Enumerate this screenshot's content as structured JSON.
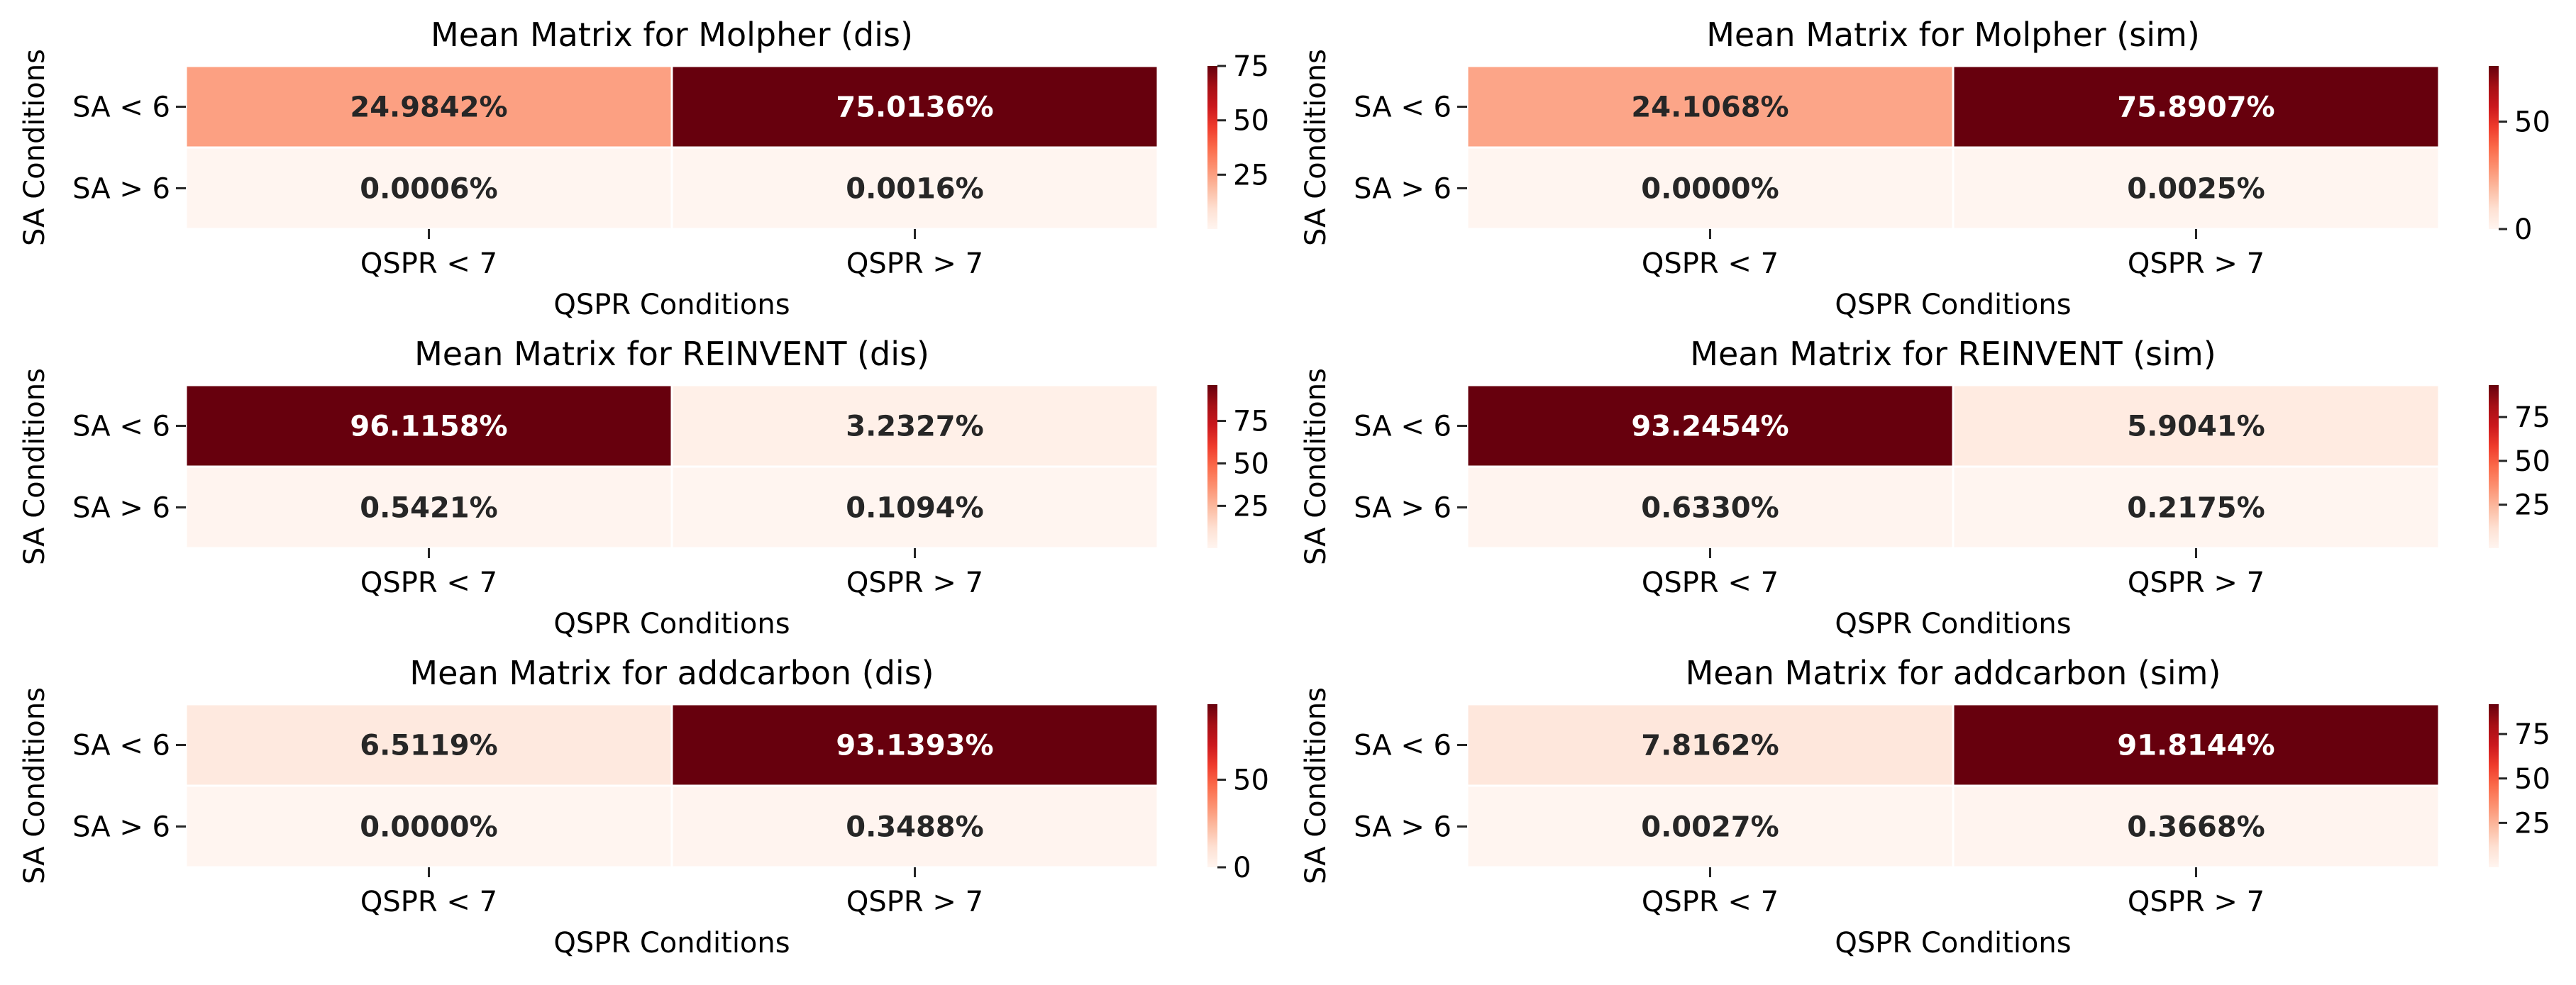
{
  "figure": {
    "xlabel": "QSPR Conditions",
    "ylabel": "SA Conditions",
    "value_suffix": "%",
    "colormap": "Reds",
    "colors": {
      "light": "#fff5f0",
      "dark": "#67000d",
      "text_dark": "#262626",
      "text_light": "#ffffff",
      "tick": "#262626"
    }
  },
  "chart_data": [
    {
      "type": "heatmap",
      "title": "Mean Matrix for Molpher (dis)",
      "xlabel": "QSPR Conditions",
      "ylabel": "SA Conditions",
      "x_categories": [
        "QSPR < 7",
        "QSPR > 7"
      ],
      "y_categories": [
        "SA < 6",
        "SA > 6"
      ],
      "values": [
        [
          24.9842,
          75.0136
        ],
        [
          0.0006,
          0.0016
        ]
      ],
      "value_labels": [
        [
          "24.9842%",
          "75.0136%"
        ],
        [
          "0.0006%",
          "0.0016%"
        ]
      ],
      "colorbar_ticks": [
        25,
        50,
        75
      ]
    },
    {
      "type": "heatmap",
      "title": "Mean Matrix for Molpher (sim)",
      "xlabel": "QSPR Conditions",
      "ylabel": "SA Conditions",
      "x_categories": [
        "QSPR < 7",
        "QSPR > 7"
      ],
      "y_categories": [
        "SA < 6",
        "SA > 6"
      ],
      "values": [
        [
          24.1068,
          75.8907
        ],
        [
          0.0,
          0.0025
        ]
      ],
      "value_labels": [
        [
          "24.1068%",
          "75.8907%"
        ],
        [
          "0.0000%",
          "0.0025%"
        ]
      ],
      "colorbar_ticks": [
        0,
        50
      ]
    },
    {
      "type": "heatmap",
      "title": "Mean Matrix for REINVENT (dis)",
      "xlabel": "QSPR Conditions",
      "ylabel": "SA Conditions",
      "x_categories": [
        "QSPR < 7",
        "QSPR > 7"
      ],
      "y_categories": [
        "SA < 6",
        "SA > 6"
      ],
      "values": [
        [
          96.1158,
          3.2327
        ],
        [
          0.5421,
          0.1094
        ]
      ],
      "value_labels": [
        [
          "96.1158%",
          "3.2327%"
        ],
        [
          "0.5421%",
          "0.1094%"
        ]
      ],
      "colorbar_ticks": [
        25,
        50,
        75
      ]
    },
    {
      "type": "heatmap",
      "title": "Mean Matrix for REINVENT (sim)",
      "xlabel": "QSPR Conditions",
      "ylabel": "SA Conditions",
      "x_categories": [
        "QSPR < 7",
        "QSPR > 7"
      ],
      "y_categories": [
        "SA < 6",
        "SA > 6"
      ],
      "values": [
        [
          93.2454,
          5.9041
        ],
        [
          0.633,
          0.2175
        ]
      ],
      "value_labels": [
        [
          "93.2454%",
          "5.9041%"
        ],
        [
          "0.6330%",
          "0.2175%"
        ]
      ],
      "colorbar_ticks": [
        25,
        50,
        75
      ]
    },
    {
      "type": "heatmap",
      "title": "Mean Matrix for addcarbon (dis)",
      "xlabel": "QSPR Conditions",
      "ylabel": "SA Conditions",
      "x_categories": [
        "QSPR < 7",
        "QSPR > 7"
      ],
      "y_categories": [
        "SA < 6",
        "SA > 6"
      ],
      "values": [
        [
          6.5119,
          93.1393
        ],
        [
          0.0,
          0.3488
        ]
      ],
      "value_labels": [
        [
          "6.5119%",
          "93.1393%"
        ],
        [
          "0.0000%",
          "0.3488%"
        ]
      ],
      "colorbar_ticks": [
        0,
        50
      ]
    },
    {
      "type": "heatmap",
      "title": "Mean Matrix for addcarbon (sim)",
      "xlabel": "QSPR Conditions",
      "ylabel": "SA Conditions",
      "x_categories": [
        "QSPR < 7",
        "QSPR > 7"
      ],
      "y_categories": [
        "SA < 6",
        "SA > 6"
      ],
      "values": [
        [
          7.8162,
          91.8144
        ],
        [
          0.0027,
          0.3668
        ]
      ],
      "value_labels": [
        [
          "7.8162%",
          "91.8144%"
        ],
        [
          "0.0027%",
          "0.3668%"
        ]
      ],
      "colorbar_ticks": [
        25,
        50,
        75
      ]
    }
  ]
}
